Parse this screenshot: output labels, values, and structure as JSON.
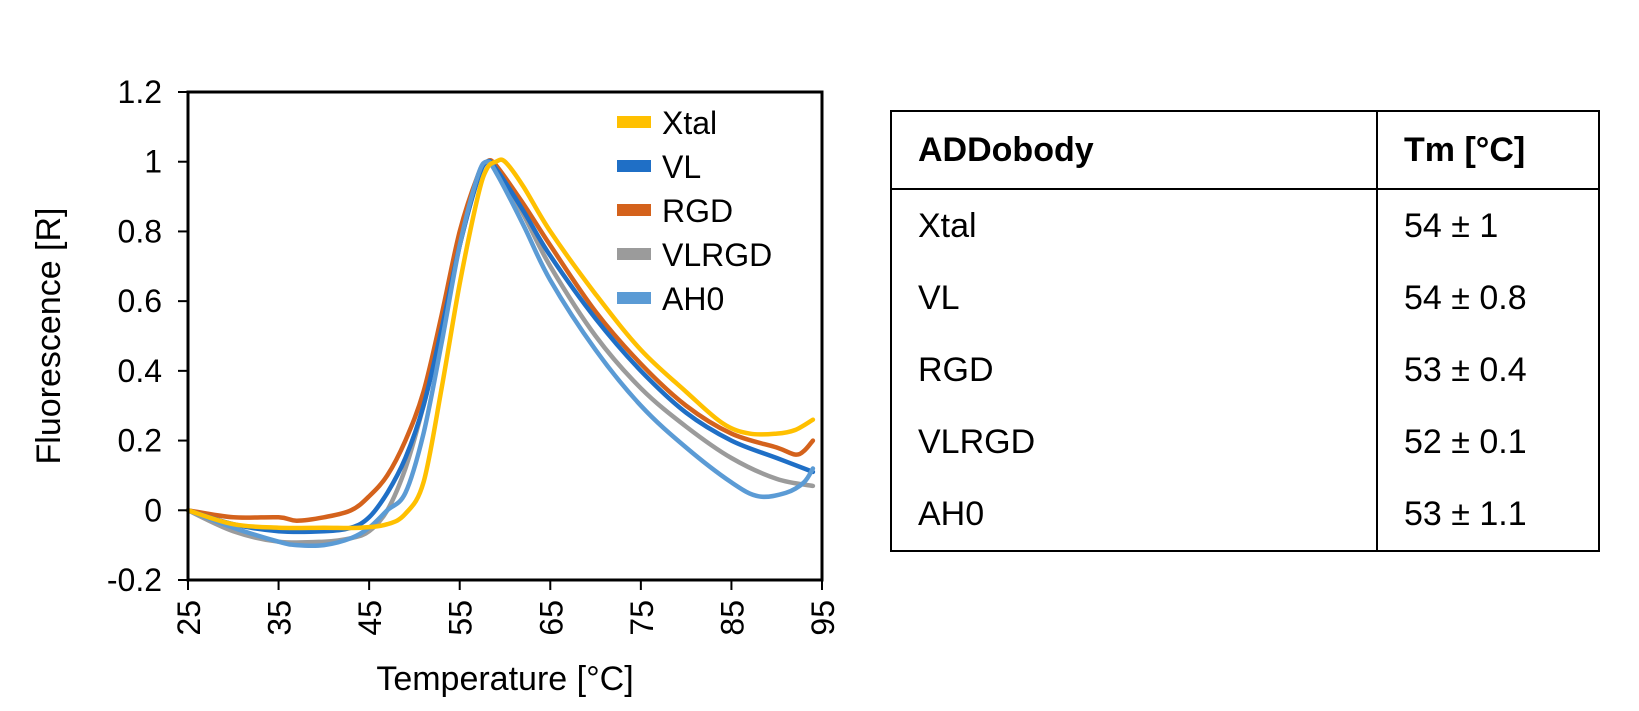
{
  "chart_data": {
    "type": "line",
    "xlabel": "Temperature [°C]",
    "ylabel": "Fluorescence [R]",
    "xlim": [
      25,
      95
    ],
    "ylim": [
      -0.2,
      1.2
    ],
    "xticks": [
      "25",
      "35",
      "45",
      "55",
      "65",
      "75",
      "85",
      "95"
    ],
    "yticks": [
      "-0.2",
      "0",
      "0.2",
      "0.4",
      "0.6",
      "0.8",
      "1",
      "1.2"
    ],
    "legend_position": "top-right",
    "series": [
      {
        "name": "Xtal",
        "color": "#FFC000",
        "points": [
          [
            25,
            0
          ],
          [
            30,
            -0.04
          ],
          [
            35,
            -0.05
          ],
          [
            40,
            -0.05
          ],
          [
            44,
            -0.05
          ],
          [
            47,
            -0.04
          ],
          [
            49,
            -0.01
          ],
          [
            51,
            0.08
          ],
          [
            53,
            0.35
          ],
          [
            55,
            0.65
          ],
          [
            57,
            0.9
          ],
          [
            58,
            0.98
          ],
          [
            59,
            1.0
          ],
          [
            60,
            1.0
          ],
          [
            62,
            0.93
          ],
          [
            65,
            0.8
          ],
          [
            70,
            0.62
          ],
          [
            75,
            0.46
          ],
          [
            80,
            0.34
          ],
          [
            84,
            0.25
          ],
          [
            87,
            0.22
          ],
          [
            90,
            0.22
          ],
          [
            92,
            0.23
          ],
          [
            94,
            0.26
          ]
        ]
      },
      {
        "name": "VL",
        "color": "#1F6FC6",
        "points": [
          [
            25,
            0
          ],
          [
            30,
            -0.04
          ],
          [
            35,
            -0.06
          ],
          [
            40,
            -0.06
          ],
          [
            43,
            -0.05
          ],
          [
            45,
            -0.02
          ],
          [
            47,
            0.05
          ],
          [
            49,
            0.15
          ],
          [
            51,
            0.3
          ],
          [
            53,
            0.52
          ],
          [
            55,
            0.76
          ],
          [
            57,
            0.95
          ],
          [
            58,
            1.0
          ],
          [
            59,
            0.98
          ],
          [
            62,
            0.86
          ],
          [
            65,
            0.73
          ],
          [
            70,
            0.55
          ],
          [
            75,
            0.4
          ],
          [
            80,
            0.28
          ],
          [
            85,
            0.2
          ],
          [
            90,
            0.15
          ],
          [
            94,
            0.11
          ]
        ]
      },
      {
        "name": "RGD",
        "color": "#D4621C",
        "points": [
          [
            25,
            0
          ],
          [
            30,
            -0.02
          ],
          [
            35,
            -0.02
          ],
          [
            37,
            -0.03
          ],
          [
            40,
            -0.02
          ],
          [
            43,
            0.0
          ],
          [
            45,
            0.04
          ],
          [
            47,
            0.1
          ],
          [
            49,
            0.2
          ],
          [
            51,
            0.34
          ],
          [
            53,
            0.56
          ],
          [
            55,
            0.8
          ],
          [
            57,
            0.96
          ],
          [
            58,
            1.0
          ],
          [
            59,
            0.99
          ],
          [
            62,
            0.88
          ],
          [
            65,
            0.76
          ],
          [
            70,
            0.57
          ],
          [
            75,
            0.42
          ],
          [
            80,
            0.3
          ],
          [
            85,
            0.22
          ],
          [
            90,
            0.18
          ],
          [
            92,
            0.16
          ],
          [
            93,
            0.17
          ],
          [
            94,
            0.2
          ]
        ]
      },
      {
        "name": "VLRGD",
        "color": "#9B9B9B",
        "points": [
          [
            25,
            0
          ],
          [
            30,
            -0.06
          ],
          [
            35,
            -0.09
          ],
          [
            40,
            -0.09
          ],
          [
            43,
            -0.08
          ],
          [
            45,
            -0.06
          ],
          [
            47,
            0.0
          ],
          [
            49,
            0.12
          ],
          [
            51,
            0.3
          ],
          [
            53,
            0.52
          ],
          [
            55,
            0.76
          ],
          [
            57,
            0.95
          ],
          [
            58,
            1.0
          ],
          [
            59,
            0.98
          ],
          [
            62,
            0.85
          ],
          [
            65,
            0.7
          ],
          [
            70,
            0.5
          ],
          [
            75,
            0.35
          ],
          [
            80,
            0.24
          ],
          [
            85,
            0.15
          ],
          [
            90,
            0.09
          ],
          [
            94,
            0.07
          ]
        ]
      },
      {
        "name": "AH0",
        "color": "#5B9BD5",
        "points": [
          [
            25,
            0
          ],
          [
            30,
            -0.05
          ],
          [
            35,
            -0.09
          ],
          [
            37,
            -0.1
          ],
          [
            40,
            -0.1
          ],
          [
            43,
            -0.08
          ],
          [
            45,
            -0.05
          ],
          [
            47,
            0.0
          ],
          [
            49,
            0.05
          ],
          [
            51,
            0.22
          ],
          [
            53,
            0.48
          ],
          [
            55,
            0.76
          ],
          [
            57,
            0.96
          ],
          [
            58,
            1.0
          ],
          [
            59,
            0.97
          ],
          [
            62,
            0.82
          ],
          [
            65,
            0.66
          ],
          [
            70,
            0.46
          ],
          [
            75,
            0.3
          ],
          [
            80,
            0.18
          ],
          [
            85,
            0.08
          ],
          [
            88,
            0.04
          ],
          [
            91,
            0.05
          ],
          [
            93,
            0.08
          ],
          [
            94,
            0.12
          ]
        ]
      }
    ]
  },
  "table": {
    "headers": [
      "ADDobody",
      "Tm [°C]"
    ],
    "rows": [
      {
        "name": "Xtal",
        "tm": "54 ± 1"
      },
      {
        "name": "VL",
        "tm": "54 ± 0.8"
      },
      {
        "name": "RGD",
        "tm": "53 ± 0.4"
      },
      {
        "name": "VLRGD",
        "tm": "52 ± 0.1"
      },
      {
        "name": "AH0",
        "tm": "53 ± 1.1"
      }
    ]
  }
}
